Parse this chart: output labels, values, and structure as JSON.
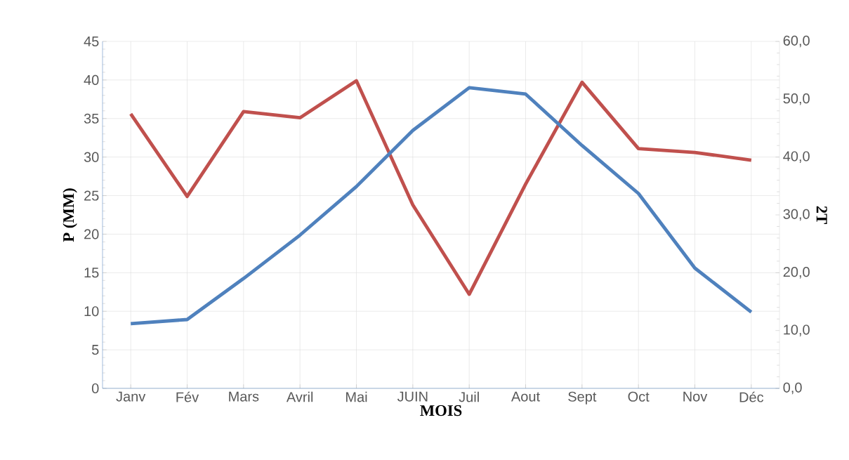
{
  "chart_data": {
    "type": "line",
    "xlabel": "MOIS",
    "ylabel": "P (MM)",
    "y2label": "2T",
    "categories": [
      "Janv",
      "Fév",
      "Mars",
      "Avril",
      "Mai",
      "JUIN",
      "Juil",
      "Aout",
      "Sept",
      "Oct",
      "Nov",
      "Déc"
    ],
    "series": [
      {
        "color": "#c0504d",
        "axis": "y",
        "values": [
          35.6,
          24.9,
          35.9,
          35.1,
          39.9,
          23.8,
          12.2,
          26.5,
          39.7,
          31.1,
          30.6,
          29.6
        ]
      },
      {
        "color": "#4f81bd",
        "axis": "y2",
        "values": [
          11.2,
          11.9,
          19.0,
          26.5,
          34.9,
          44.6,
          52.0,
          50.9,
          42.0,
          33.7,
          20.8,
          13.2
        ]
      }
    ],
    "ylim": [
      0,
      45
    ],
    "yticks": [
      0,
      5,
      10,
      15,
      20,
      25,
      30,
      35,
      40,
      45
    ],
    "y2lim": [
      0,
      60
    ],
    "y2ticks": [
      {
        "value": 0,
        "label": "0,0"
      },
      {
        "value": 10,
        "label": "10,0"
      },
      {
        "value": 20,
        "label": "20,0"
      },
      {
        "value": 30,
        "label": "30,0"
      },
      {
        "value": 40,
        "label": "40,0"
      },
      {
        "value": 50,
        "label": "50,0"
      },
      {
        "value": 60,
        "label": "60,0"
      }
    ],
    "grid": true,
    "marker": "none",
    "line_style": "solid"
  }
}
